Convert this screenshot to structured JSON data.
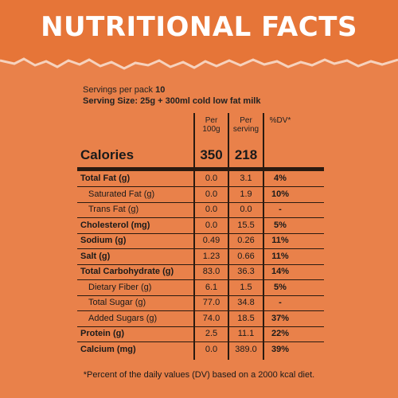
{
  "title": "NUTRITIONAL FACTS",
  "servings": {
    "per_pack_label": "Servings per pack",
    "per_pack_value": "10",
    "serving_size": "Serving Size: 25g + 300ml cold low fat milk"
  },
  "columns": {
    "per100g_line1": "Per",
    "per100g_line2": "100g",
    "perserving_line1": "Per",
    "perserving_line2": "serving",
    "dv": "%DV*"
  },
  "calories": {
    "label": "Calories",
    "per100g": "350",
    "perserving": "218"
  },
  "rows": [
    {
      "label": "Total Fat (g)",
      "per100g": "0.0",
      "perserving": "3.1",
      "dv": "4%",
      "bold": true,
      "indent": false
    },
    {
      "label": "Saturated Fat (g)",
      "per100g": "0.0",
      "perserving": "1.9",
      "dv": "10%",
      "bold": false,
      "indent": true
    },
    {
      "label": "Trans Fat (g)",
      "per100g": "0.0",
      "perserving": "0.0",
      "dv": "-",
      "bold": false,
      "indent": true
    },
    {
      "label": "Cholesterol (mg)",
      "per100g": "0.0",
      "perserving": "15.5",
      "dv": "5%",
      "bold": true,
      "indent": false
    },
    {
      "label": "Sodium (g)",
      "per100g": "0.49",
      "perserving": "0.26",
      "dv": "11%",
      "bold": true,
      "indent": false
    },
    {
      "label": "Salt (g)",
      "per100g": "1.23",
      "perserving": "0.66",
      "dv": "11%",
      "bold": true,
      "indent": false
    },
    {
      "label": "Total Carbohydrate (g)",
      "per100g": "83.0",
      "perserving": "36.3",
      "dv": "14%",
      "bold": true,
      "indent": false
    },
    {
      "label": "Dietary Fiber (g)",
      "per100g": "6.1",
      "perserving": "1.5",
      "dv": "5%",
      "bold": false,
      "indent": true
    },
    {
      "label": "Total Sugar (g)",
      "per100g": "77.0",
      "perserving": "34.8",
      "dv": "-",
      "bold": false,
      "indent": true
    },
    {
      "label": "Added Sugars (g)",
      "per100g": "74.0",
      "perserving": "18.5",
      "dv": "37%",
      "bold": false,
      "indent": true
    },
    {
      "label": "Protein (g)",
      "per100g": "2.5",
      "perserving": "11.1",
      "dv": "22%",
      "bold": true,
      "indent": false
    },
    {
      "label": "Calcium (mg)",
      "per100g": "0.0",
      "perserving": "389.0",
      "dv": "39%",
      "bold": true,
      "indent": false
    }
  ],
  "footnote": "*Percent of the daily values (DV) based on a 2000 kcal diet.",
  "colors": {
    "background": "#e9814a",
    "header": "#e67538",
    "title_text": "#ffffff",
    "text": "#1a1a1a"
  }
}
